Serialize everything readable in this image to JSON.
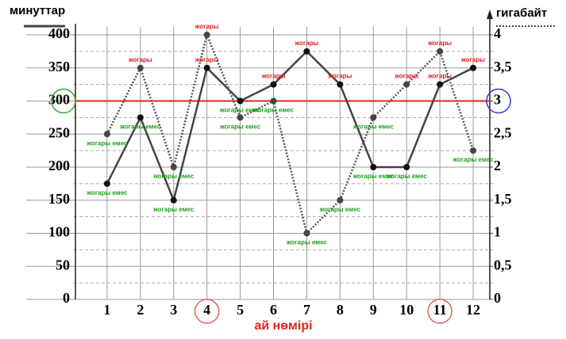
{
  "chart_data": {
    "type": "line",
    "y_label": "минуттар",
    "y2_label": "гигабайт",
    "x_label": "ай нөмірі",
    "x": [
      1,
      2,
      3,
      4,
      5,
      6,
      7,
      8,
      9,
      10,
      11,
      12
    ],
    "xlim": [
      0,
      12.5
    ],
    "xticks": [
      1,
      2,
      3,
      4,
      5,
      6,
      7,
      8,
      9,
      10,
      11,
      12
    ],
    "ylim": [
      0,
      400
    ],
    "yticks": [
      0,
      50,
      100,
      150,
      200,
      250,
      300,
      350,
      400
    ],
    "y2lim": [
      0,
      4
    ],
    "y2ticks": [
      0,
      {
        "value": 0.5,
        "label": "0,5"
      },
      1,
      {
        "value": 1.5,
        "label": "1,5"
      },
      2,
      {
        "value": 2.5,
        "label": "2,5"
      },
      3,
      {
        "value": 3.5,
        "label": "3,5"
      },
      4
    ],
    "y2_minor_grid": [
      0.25,
      0.75,
      1.25,
      1.75,
      2.25,
      2.75,
      3.25,
      3.75
    ],
    "grid": true,
    "reference_line": {
      "value": 300,
      "color": "#e32424"
    },
    "circled_x": [
      4,
      11
    ],
    "circled_y": 300,
    "circled_y2": 3,
    "series": [
      {
        "color": "#444444",
        "style": "solid",
        "values": [
          175,
          275,
          150,
          350,
          300,
          325,
          375,
          325,
          200,
          200,
          325,
          350
        ],
        "labels": [
          "жогары емес",
          "жогары емес",
          "жогары емес",
          "жогары",
          "жогары емес",
          "жогары",
          "жогары",
          "жогары",
          "жогары емес",
          "жогары емес",
          "жогары",
          "жогары"
        ]
      },
      {
        "color": "#555555",
        "style": "dotted",
        "axis": "y2",
        "values": [
          2.5,
          3.5,
          2,
          4,
          2.75,
          3,
          1,
          1.5,
          2.75,
          3.25,
          3.75,
          2.25
        ],
        "labels": [
          "жогары емес",
          "жогары",
          "жогары емес",
          "жогары",
          "жогары емес",
          "жогары емес",
          "жогары емес",
          "жогары емес",
          "жогары емес",
          "жогары",
          "жогары",
          "жогары емес"
        ]
      }
    ]
  }
}
